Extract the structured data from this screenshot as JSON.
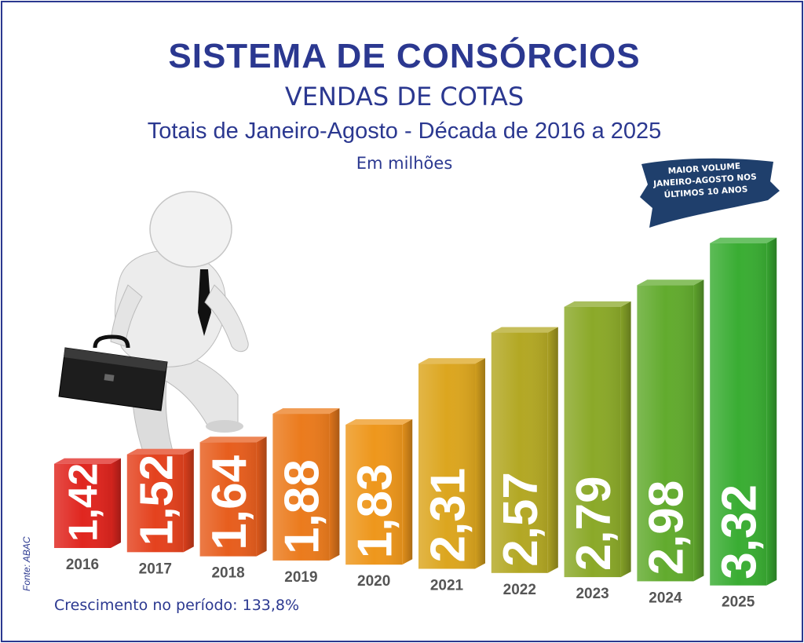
{
  "header": {
    "title": "SISTEMA DE CONSÓRCIOS",
    "subtitle": "VENDAS DE COTAS",
    "period": "Totais de Janeiro-Agosto - Década de 2016 a 2025",
    "unit": "Em milhões"
  },
  "banner": {
    "line1": "MAIOR VOLUME",
    "line2": "JANEIRO-AGOSTO NOS",
    "line3": "ÚLTIMOS 10 ANOS"
  },
  "source": "Fonte: ABAC",
  "growth": "Crescimento no período: 133,8%",
  "illustration": "businessman-climbing-steps-icon",
  "colors": {
    "title": "#2b3890",
    "bar_low": "#e0261f",
    "bar_mid": "#f0a51c",
    "bar_high": "#3aad33"
  },
  "chart_data": {
    "type": "bar",
    "title": "SISTEMA DE CONSÓRCIOS",
    "categories": [
      "2016",
      "2017",
      "2018",
      "2019",
      "2020",
      "2021",
      "2022",
      "2023",
      "2024",
      "2025"
    ],
    "values": [
      1.42,
      1.52,
      1.64,
      1.88,
      1.83,
      2.31,
      2.57,
      2.79,
      2.98,
      3.32
    ],
    "value_labels": [
      "1,42",
      "1,52",
      "1,64",
      "1,88",
      "1,83",
      "2,31",
      "2,57",
      "2,79",
      "2,98",
      "3,32"
    ],
    "ylabel": "Em milhões",
    "grid": false,
    "legend": "none"
  }
}
